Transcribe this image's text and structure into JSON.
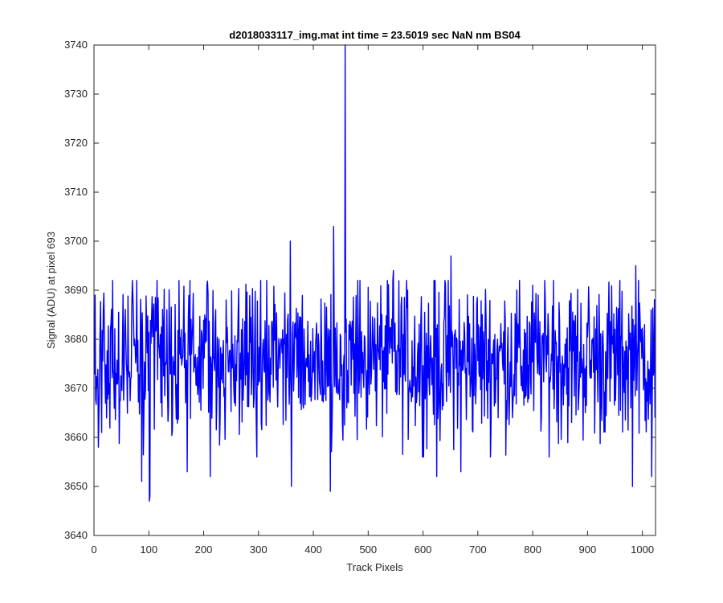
{
  "chart_data": {
    "type": "line",
    "title": "d2018033117_img.mat int time = 23.5019 sec  NaN nm BS04",
    "xlabel": "Track Pixels",
    "ylabel": "Signal (ADU) at pixel 693",
    "xlim": [
      0,
      1024
    ],
    "ylim": [
      3640,
      3740
    ],
    "xticks": [
      0,
      100,
      200,
      300,
      400,
      500,
      600,
      700,
      800,
      900,
      1000
    ],
    "yticks": [
      3640,
      3650,
      3660,
      3670,
      3680,
      3690,
      3700,
      3710,
      3720,
      3730,
      3740
    ],
    "grid": false,
    "line_color": "#0000ff",
    "n_points": 1024,
    "baseline_mean": 3676,
    "noise_range": [
      3656,
      3692
    ],
    "notable_points": [
      {
        "x": 2,
        "y": 3689
      },
      {
        "x": 8,
        "y": 3658
      },
      {
        "x": 87,
        "y": 3651
      },
      {
        "x": 101,
        "y": 3647
      },
      {
        "x": 102,
        "y": 3648
      },
      {
        "x": 170,
        "y": 3653
      },
      {
        "x": 212,
        "y": 3652
      },
      {
        "x": 357,
        "y": 3672
      },
      {
        "x": 358,
        "y": 3700
      },
      {
        "x": 360,
        "y": 3650
      },
      {
        "x": 431,
        "y": 3649
      },
      {
        "x": 437,
        "y": 3703
      },
      {
        "x": 458,
        "y": 3740
      },
      {
        "x": 546,
        "y": 3694
      },
      {
        "x": 572,
        "y": 3690
      },
      {
        "x": 625,
        "y": 3652
      },
      {
        "x": 651,
        "y": 3697
      },
      {
        "x": 669,
        "y": 3653
      },
      {
        "x": 838,
        "y": 3692
      },
      {
        "x": 982,
        "y": 3650
      },
      {
        "x": 988,
        "y": 3695
      },
      {
        "x": 1017,
        "y": 3652
      },
      {
        "x": 1023,
        "y": 3664
      }
    ]
  }
}
